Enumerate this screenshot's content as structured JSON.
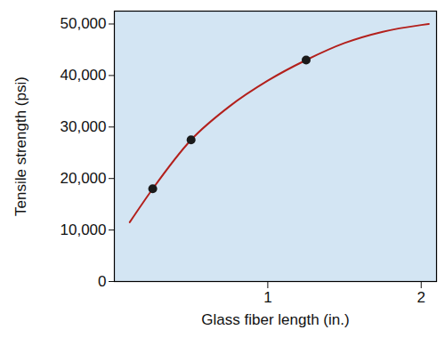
{
  "chart_data": {
    "type": "line",
    "x_label": "Glass fiber length (in.)",
    "y_label": "Tensile strength (psi)",
    "xlim": [
      0,
      2.1
    ],
    "ylim": [
      0,
      52500
    ],
    "xticks": [
      1,
      2
    ],
    "yticks": [
      0,
      {
        "value": 10000,
        "label": "10,000"
      },
      {
        "value": 20000,
        "label": "20,000"
      },
      {
        "value": 30000,
        "label": "30,000"
      },
      {
        "value": 40000,
        "label": "40,000"
      },
      {
        "value": 50000,
        "label": "50,000"
      }
    ],
    "grid": false,
    "series": [
      {
        "type": "line",
        "color": "#b3201c",
        "marker": "none",
        "line_style": "solid",
        "x": [
          0.1,
          0.25,
          0.5,
          0.75,
          1.0,
          1.25,
          1.5,
          1.75,
          2.0,
          2.05
        ],
        "values": [
          11500,
          18000,
          27500,
          34000,
          39000,
          43000,
          46300,
          48500,
          49800,
          50000
        ]
      },
      {
        "type": "scatter",
        "color": "#1a1a1a",
        "marker": "circle",
        "x": [
          0.25,
          0.5,
          1.25
        ],
        "values": [
          18000,
          27500,
          43000
        ]
      }
    ]
  }
}
